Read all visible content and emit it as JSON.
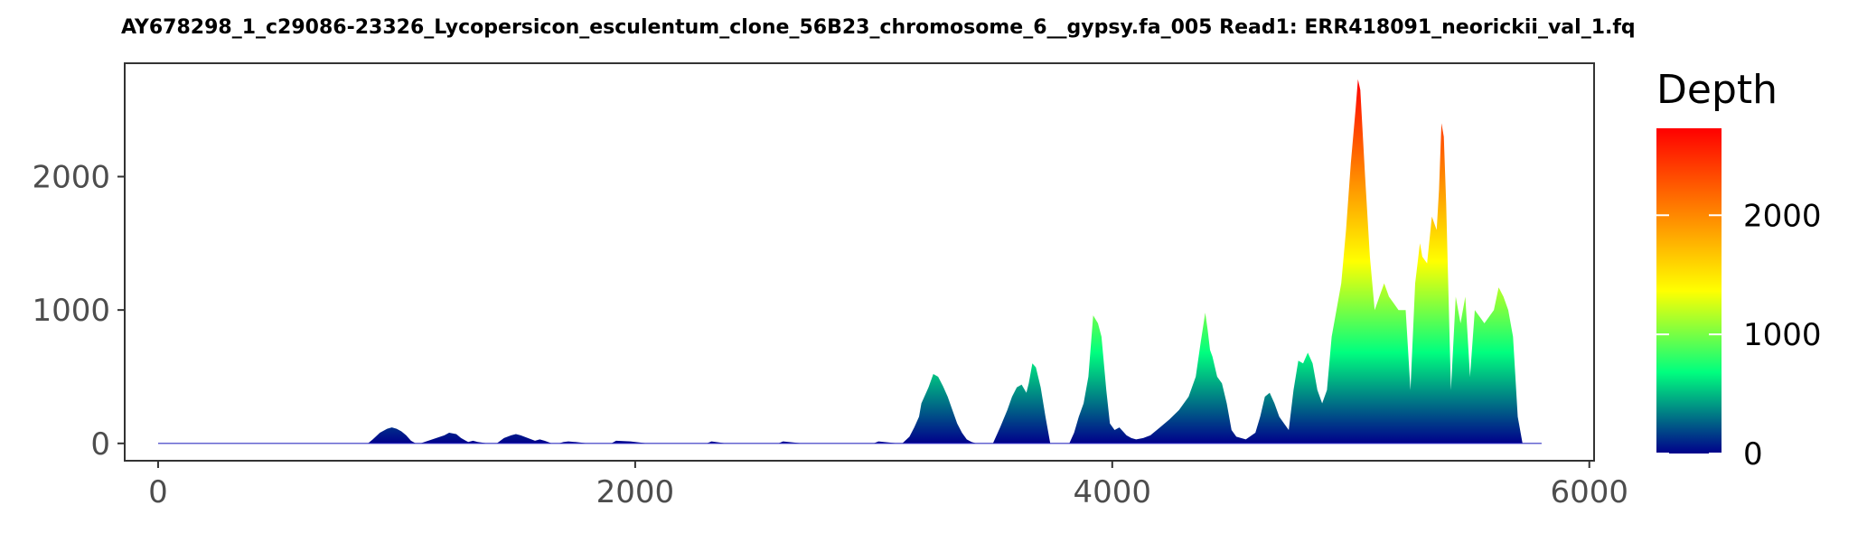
{
  "chart_data": {
    "type": "area",
    "title": "AY678298_1_c29086-23326_Lycopersicon_esculentum_clone_56B23_chromosome_6__gypsy.fa_005    Read1: ERR418091_neorickii_val_1.fq",
    "xlabel": "",
    "ylabel": "",
    "xlim": [
      -140,
      6020
    ],
    "ylim": [
      -130,
      2850
    ],
    "x_ticks": [
      0,
      2000,
      4000,
      6000
    ],
    "y_ticks": [
      0,
      1000,
      2000
    ],
    "grid": false,
    "legend": {
      "title": "Depth",
      "position": "right",
      "ticks": [
        0,
        1000,
        2000
      ],
      "range": [
        0,
        2730
      ],
      "colors": [
        "#00008B",
        "#00FF7F",
        "#FFFF00",
        "#FF7F00",
        "#FF0000"
      ]
    },
    "series": [
      {
        "x": [
          0,
          50,
          60,
          880,
          900,
          930,
          960,
          980,
          1000,
          1020,
          1040,
          1060,
          1080,
          1100,
          1200,
          1220,
          1250,
          1270,
          1290,
          1300,
          1320,
          1340,
          1380,
          1420,
          1450,
          1480,
          1500,
          1520,
          1550,
          1580,
          1600,
          1620,
          1650,
          1680,
          1700,
          1720,
          1750,
          1800,
          1900,
          1920,
          1980,
          2050,
          2100,
          2300,
          2320,
          2380,
          2600,
          2620,
          2700,
          2850,
          3000,
          3020,
          3100,
          3120,
          3150,
          3170,
          3190,
          3200,
          3230,
          3250,
          3270,
          3290,
          3310,
          3330,
          3350,
          3370,
          3390,
          3410,
          3430,
          3460,
          3500,
          3530,
          3560,
          3580,
          3600,
          3620,
          3640,
          3650,
          3665,
          3680,
          3700,
          3720,
          3740,
          3780,
          3820,
          3840,
          3860,
          3880,
          3900,
          3920,
          3940,
          3955,
          3975,
          3990,
          4010,
          4030,
          4060,
          4080,
          4100,
          4130,
          4160,
          4200,
          4240,
          4280,
          4300,
          4320,
          4350,
          4370,
          4390,
          4400,
          4410,
          4420,
          4440,
          4460,
          4480,
          4500,
          4520,
          4560,
          4600,
          4620,
          4640,
          4660,
          4680,
          4700,
          4720,
          4740,
          4760,
          4780,
          4800,
          4820,
          4840,
          4860,
          4880,
          4900,
          4920,
          4940,
          4960,
          4980,
          5000,
          5020,
          5030,
          5040,
          5060,
          5080,
          5100,
          5120,
          5140,
          5160,
          5180,
          5200,
          5230,
          5250,
          5270,
          5290,
          5300,
          5320,
          5340,
          5360,
          5370,
          5380,
          5390,
          5400,
          5420,
          5440,
          5460,
          5480,
          5500,
          5520,
          5540,
          5560,
          5580,
          5600,
          5620,
          5640,
          5660,
          5680,
          5700,
          5720,
          5750,
          5800
        ],
        "values": [
          0,
          0,
          0,
          0,
          30,
          80,
          110,
          120,
          110,
          90,
          60,
          20,
          0,
          0,
          60,
          80,
          70,
          40,
          20,
          10,
          20,
          10,
          0,
          0,
          40,
          60,
          70,
          60,
          40,
          20,
          30,
          20,
          0,
          0,
          10,
          15,
          10,
          0,
          0,
          20,
          15,
          0,
          0,
          0,
          15,
          0,
          0,
          15,
          0,
          0,
          0,
          15,
          0,
          0,
          50,
          120,
          200,
          300,
          420,
          520,
          500,
          430,
          350,
          250,
          150,
          80,
          30,
          10,
          0,
          0,
          0,
          120,
          250,
          350,
          420,
          440,
          380,
          450,
          600,
          570,
          420,
          200,
          0,
          0,
          0,
          80,
          200,
          300,
          500,
          960,
          900,
          800,
          400,
          150,
          100,
          120,
          60,
          40,
          30,
          40,
          60,
          120,
          180,
          250,
          300,
          350,
          500,
          750,
          980,
          850,
          700,
          650,
          500,
          450,
          300,
          100,
          50,
          30,
          80,
          200,
          350,
          380,
          300,
          200,
          150,
          100,
          400,
          620,
          600,
          680,
          600,
          400,
          300,
          400,
          800,
          1000,
          1200,
          1600,
          2100,
          2500,
          2730,
          2650,
          2000,
          1400,
          1000,
          1100,
          1200,
          1100,
          1050,
          1000,
          1000,
          400,
          1200,
          1500,
          1400,
          1350,
          1700,
          1600,
          1900,
          2400,
          2300,
          1800,
          400,
          1100,
          900,
          1100,
          500,
          1000,
          950,
          900,
          950,
          1000,
          1170,
          1100,
          1000,
          800,
          200,
          0,
          0,
          0
        ]
      }
    ]
  }
}
